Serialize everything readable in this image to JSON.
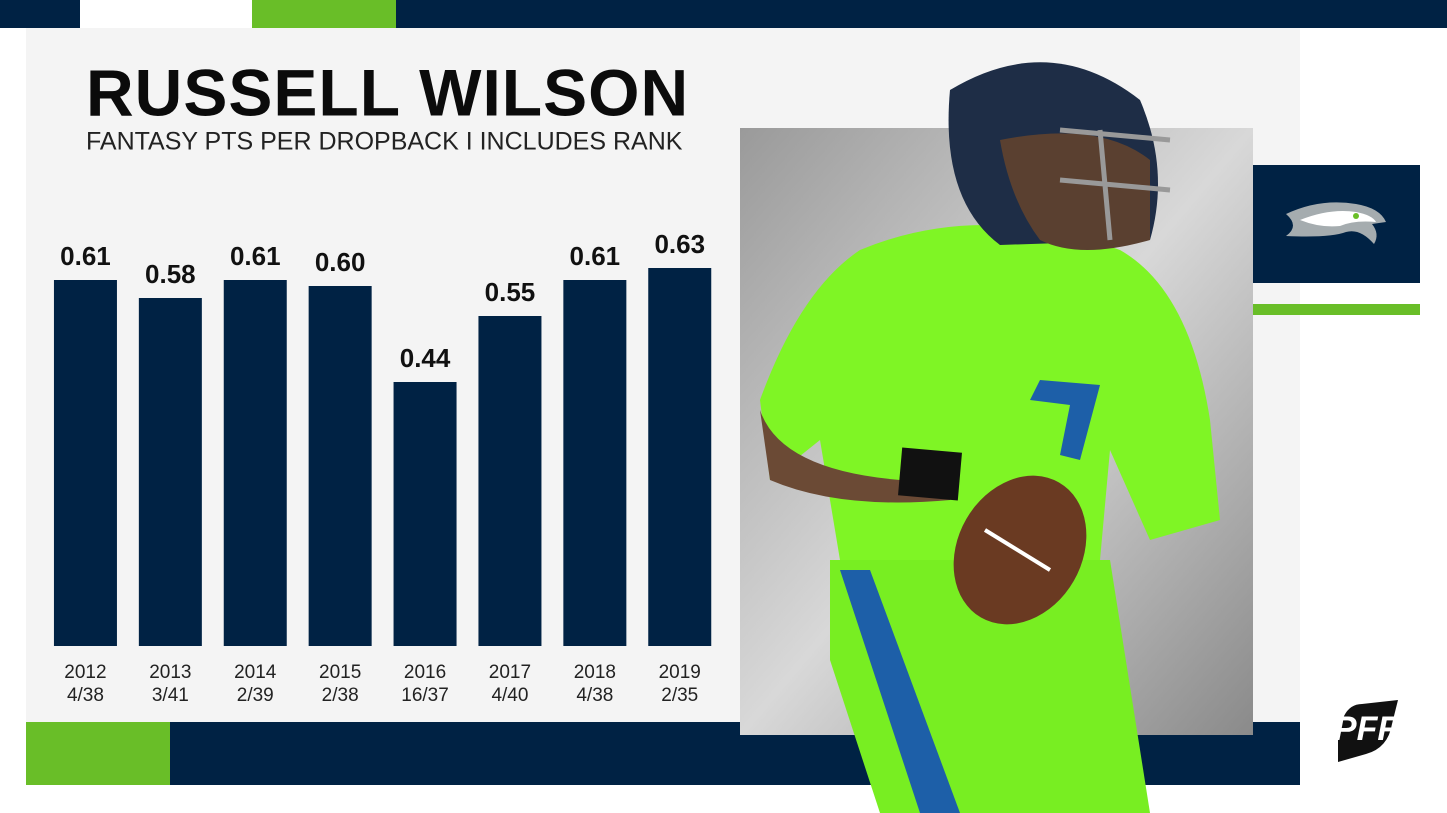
{
  "chart_data": {
    "type": "bar",
    "title": "RUSSELL WILSON",
    "subtitle": "FANTASY PTS PER DROPBACK I INCLUDES RANK",
    "categories": [
      "2012",
      "2013",
      "2014",
      "2015",
      "2016",
      "2017",
      "2018",
      "2019"
    ],
    "ranks": [
      "4/38",
      "3/41",
      "2/39",
      "2/38",
      "16/37",
      "4/40",
      "4/38",
      "2/35"
    ],
    "values": [
      0.61,
      0.58,
      0.61,
      0.6,
      0.44,
      0.55,
      0.61,
      0.63
    ],
    "value_labels": [
      "0.61",
      "0.58",
      "0.61",
      "0.60",
      "0.44",
      "0.55",
      "0.61",
      "0.63"
    ],
    "color": "#002244",
    "ylim": [
      0,
      0.7
    ],
    "logo": "PFF"
  }
}
